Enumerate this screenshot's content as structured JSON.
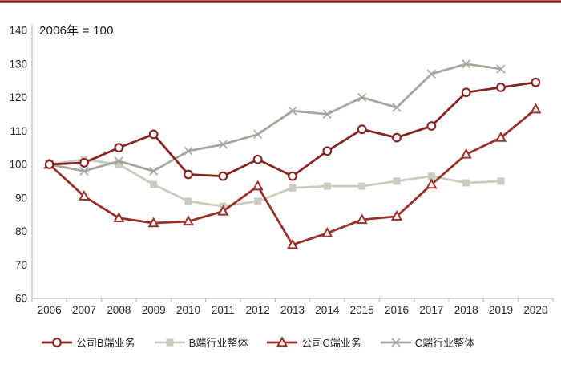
{
  "note": "2006年 = 100",
  "accent_color": "#7c1d1a",
  "axes": {
    "line_color": "#bfbfbf",
    "label_color": "#262626"
  },
  "chart_data": {
    "type": "line",
    "title": "",
    "annotation": "2006年 = 100",
    "x": [
      "2006",
      "2007",
      "2008",
      "2009",
      "2010",
      "2011",
      "2012",
      "2013",
      "2014",
      "2015",
      "2016",
      "2017",
      "2018",
      "2019",
      "2020"
    ],
    "ylim": [
      60,
      140
    ],
    "ytick_step": 10,
    "yticks": [
      60,
      70,
      80,
      90,
      100,
      110,
      120,
      130,
      140
    ],
    "grid": false,
    "legend_position": "bottom",
    "series": [
      {
        "id": "industry-b",
        "name": "B端行业整体",
        "marker": "square",
        "color": "#cdcac0",
        "values": [
          100,
          101.5,
          100,
          94,
          89,
          87.5,
          89,
          93,
          93.5,
          93.5,
          95,
          96.5,
          94.5,
          95,
          null
        ]
      },
      {
        "id": "industry-c",
        "name": "C端行业整体",
        "marker": "x",
        "color": "#a7a69e",
        "values": [
          100,
          98,
          101,
          98,
          104,
          106,
          109,
          116,
          115,
          120,
          117,
          127,
          130,
          128.5,
          null
        ]
      },
      {
        "id": "company-c",
        "name": "公司C端业务",
        "marker": "triangle",
        "color": "#98302a",
        "values": [
          100,
          90.5,
          84,
          82.5,
          83,
          86,
          93.5,
          76,
          79.5,
          83.5,
          84.5,
          94,
          103,
          108,
          116.5
        ]
      },
      {
        "id": "company-b",
        "name": "公司B端业务",
        "marker": "circle",
        "color": "#832522",
        "values": [
          100,
          100.5,
          105,
          109,
          97,
          96.5,
          101.5,
          96.5,
          104,
          110.5,
          108,
          111.5,
          121.5,
          123,
          124.5
        ]
      }
    ],
    "legend_order": [
      "company-b",
      "industry-b",
      "company-c",
      "industry-c"
    ]
  }
}
